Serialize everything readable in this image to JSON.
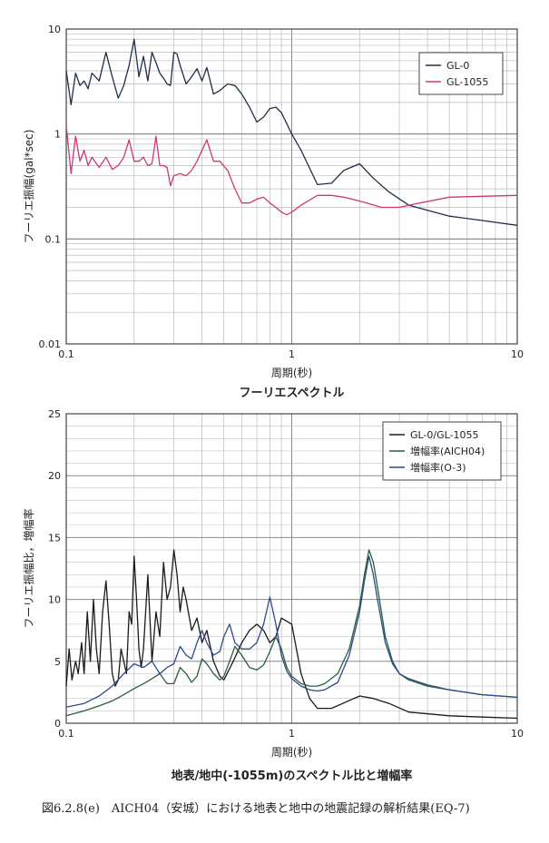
{
  "chart_data": [
    {
      "type": "line",
      "title": "フーリエスペクトル",
      "xlabel": "周期(秒)",
      "ylabel": "フーリエ振幅(gal*sec)",
      "x_scale": "log",
      "y_scale": "log",
      "xlim": [
        0.1,
        10
      ],
      "ylim": [
        0.01,
        10
      ],
      "x_ticks": [
        "0.1",
        "1",
        "10"
      ],
      "y_ticks": [
        "10",
        "1",
        "0.1",
        "0.01"
      ],
      "grid": true,
      "legend_position": "top-right",
      "series": [
        {
          "name": "GL-0",
          "color": "#1f2f4a",
          "x": [
            0.1,
            0.105,
            0.11,
            0.115,
            0.12,
            0.125,
            0.13,
            0.14,
            0.15,
            0.16,
            0.17,
            0.18,
            0.19,
            0.2,
            0.21,
            0.22,
            0.23,
            0.24,
            0.25,
            0.26,
            0.27,
            0.28,
            0.29,
            0.3,
            0.31,
            0.32,
            0.34,
            0.36,
            0.38,
            0.4,
            0.42,
            0.45,
            0.48,
            0.52,
            0.56,
            0.6,
            0.65,
            0.7,
            0.75,
            0.8,
            0.85,
            0.9,
            1.0,
            1.1,
            1.3,
            1.5,
            1.7,
            2.0,
            2.3,
            2.7,
            3.3,
            5.0,
            7.0,
            10.0
          ],
          "y": [
            4.0,
            1.9,
            3.8,
            2.9,
            3.2,
            2.7,
            3.8,
            3.2,
            6.0,
            3.5,
            2.2,
            2.9,
            4.5,
            8.0,
            3.5,
            5.5,
            3.2,
            6.0,
            4.8,
            3.8,
            3.4,
            3.0,
            2.9,
            6.0,
            5.8,
            4.5,
            3.0,
            3.5,
            4.2,
            3.2,
            4.3,
            2.4,
            2.6,
            3.0,
            2.9,
            2.4,
            1.8,
            1.3,
            1.45,
            1.75,
            1.8,
            1.6,
            1.0,
            0.7,
            0.33,
            0.34,
            0.45,
            0.52,
            0.38,
            0.28,
            0.21,
            0.165,
            0.15,
            0.135
          ]
        },
        {
          "name": "GL-1055",
          "color": "#d0357a",
          "x": [
            0.1,
            0.105,
            0.11,
            0.115,
            0.12,
            0.125,
            0.13,
            0.14,
            0.15,
            0.16,
            0.17,
            0.18,
            0.19,
            0.2,
            0.21,
            0.22,
            0.23,
            0.24,
            0.25,
            0.26,
            0.27,
            0.28,
            0.29,
            0.3,
            0.32,
            0.34,
            0.36,
            0.38,
            0.4,
            0.42,
            0.45,
            0.48,
            0.52,
            0.56,
            0.6,
            0.65,
            0.7,
            0.75,
            0.8,
            0.85,
            0.9,
            0.95,
            1.0,
            1.1,
            1.3,
            1.5,
            1.7,
            2.0,
            2.5,
            3.0,
            3.3,
            5.0,
            7.0,
            10.0
          ],
          "y": [
            1.2,
            0.42,
            0.95,
            0.55,
            0.7,
            0.5,
            0.6,
            0.48,
            0.6,
            0.46,
            0.5,
            0.6,
            0.88,
            0.55,
            0.55,
            0.6,
            0.5,
            0.52,
            0.95,
            0.5,
            0.5,
            0.48,
            0.32,
            0.4,
            0.42,
            0.4,
            0.45,
            0.55,
            0.7,
            0.88,
            0.55,
            0.55,
            0.45,
            0.3,
            0.22,
            0.22,
            0.24,
            0.25,
            0.22,
            0.2,
            0.18,
            0.17,
            0.18,
            0.21,
            0.26,
            0.26,
            0.25,
            0.23,
            0.2,
            0.2,
            0.21,
            0.25,
            0.255,
            0.26
          ]
        }
      ]
    },
    {
      "type": "line",
      "title": "地表/地中(-1055m)のスペクトル比と増幅率",
      "xlabel": "周期(秒)",
      "ylabel": "フーリエ振幅比，増幅率",
      "x_scale": "log",
      "y_scale": "linear",
      "xlim": [
        0.1,
        10
      ],
      "ylim": [
        0,
        25
      ],
      "x_ticks": [
        "0.1",
        "1",
        "10"
      ],
      "y_ticks": [
        "25",
        "20",
        "15",
        "10",
        "5",
        "0"
      ],
      "grid": true,
      "legend_position": "top-right",
      "series": [
        {
          "name": "GL-0/GL-1055",
          "color": "#1a1a1a",
          "x": [
            0.1,
            0.103,
            0.106,
            0.11,
            0.113,
            0.117,
            0.12,
            0.124,
            0.128,
            0.132,
            0.136,
            0.14,
            0.145,
            0.15,
            0.155,
            0.16,
            0.165,
            0.17,
            0.175,
            0.18,
            0.185,
            0.19,
            0.195,
            0.2,
            0.205,
            0.21,
            0.215,
            0.22,
            0.23,
            0.24,
            0.25,
            0.26,
            0.27,
            0.28,
            0.29,
            0.3,
            0.31,
            0.32,
            0.33,
            0.34,
            0.36,
            0.38,
            0.4,
            0.42,
            0.45,
            0.48,
            0.5,
            0.55,
            0.6,
            0.65,
            0.7,
            0.75,
            0.8,
            0.85,
            0.9,
            1.0,
            1.1,
            1.2,
            1.3,
            1.5,
            2.0,
            2.3,
            2.7,
            3.3,
            5.0,
            7.0,
            10.0
          ],
          "y": [
            3.0,
            6.0,
            3.5,
            5.0,
            4.0,
            6.5,
            4.0,
            9.0,
            5.0,
            10.0,
            6.0,
            4.0,
            9.0,
            11.5,
            8.0,
            4.0,
            3.0,
            3.5,
            6.0,
            5.0,
            4.0,
            9.0,
            8.0,
            13.5,
            10.0,
            6.0,
            4.5,
            6.0,
            12.0,
            5.0,
            9.0,
            7.0,
            13.0,
            10.0,
            11.0,
            14.0,
            12.0,
            9.0,
            11.0,
            10.0,
            7.5,
            8.5,
            6.5,
            7.5,
            5.0,
            3.8,
            3.5,
            5.0,
            6.5,
            7.5,
            8.0,
            7.5,
            6.5,
            7.0,
            8.5,
            8.0,
            4.0,
            2.0,
            1.2,
            1.2,
            2.2,
            2.0,
            1.6,
            0.9,
            0.6,
            0.5,
            0.4
          ]
        },
        {
          "name": "増幅率(AICH04)",
          "color": "#2a5f3c",
          "x": [
            0.1,
            0.12,
            0.14,
            0.16,
            0.18,
            0.2,
            0.22,
            0.24,
            0.26,
            0.28,
            0.3,
            0.32,
            0.34,
            0.36,
            0.38,
            0.4,
            0.42,
            0.45,
            0.48,
            0.5,
            0.53,
            0.56,
            0.6,
            0.65,
            0.7,
            0.75,
            0.8,
            0.85,
            0.9,
            0.95,
            1.0,
            1.1,
            1.2,
            1.3,
            1.4,
            1.6,
            1.8,
            2.0,
            2.1,
            2.2,
            2.3,
            2.4,
            2.6,
            2.8,
            3.0,
            3.3,
            4.0,
            5.0,
            7.0,
            10.0
          ],
          "y": [
            0.6,
            1.0,
            1.4,
            1.8,
            2.3,
            2.8,
            3.2,
            3.6,
            4.0,
            3.2,
            3.2,
            4.5,
            4.0,
            3.3,
            3.8,
            5.2,
            4.8,
            4.0,
            3.5,
            3.8,
            5.0,
            6.2,
            5.5,
            4.5,
            4.3,
            4.7,
            5.8,
            7.0,
            6.0,
            4.5,
            3.8,
            3.2,
            3.0,
            3.0,
            3.2,
            4.0,
            6.0,
            9.5,
            12.0,
            14.0,
            13.0,
            11.0,
            7.0,
            5.0,
            4.0,
            3.5,
            3.0,
            2.7,
            2.3,
            2.1
          ]
        },
        {
          "name": "増幅率(O-3)",
          "color": "#2c4a8c",
          "x": [
            0.1,
            0.12,
            0.14,
            0.16,
            0.18,
            0.2,
            0.22,
            0.24,
            0.26,
            0.28,
            0.3,
            0.32,
            0.34,
            0.36,
            0.38,
            0.4,
            0.42,
            0.45,
            0.48,
            0.5,
            0.53,
            0.56,
            0.6,
            0.65,
            0.7,
            0.75,
            0.8,
            0.85,
            0.9,
            0.95,
            1.0,
            1.1,
            1.2,
            1.3,
            1.4,
            1.6,
            1.8,
            2.0,
            2.1,
            2.2,
            2.3,
            2.4,
            2.6,
            2.8,
            3.0,
            3.3,
            4.0,
            5.0,
            7.0,
            10.0
          ],
          "y": [
            1.3,
            1.6,
            2.2,
            3.0,
            4.0,
            4.8,
            4.5,
            5.0,
            4.0,
            4.5,
            4.8,
            6.2,
            5.5,
            5.2,
            6.5,
            7.5,
            6.5,
            5.5,
            5.8,
            7.0,
            8.0,
            6.5,
            6.0,
            6.0,
            6.5,
            8.0,
            10.2,
            8.0,
            5.5,
            4.2,
            3.6,
            3.0,
            2.7,
            2.6,
            2.7,
            3.3,
            5.5,
            9.0,
            11.5,
            13.5,
            12.0,
            10.0,
            6.5,
            4.8,
            4.0,
            3.6,
            3.1,
            2.7,
            2.3,
            2.1
          ]
        }
      ]
    }
  ],
  "caption": "図6.2.8(e)　AICH04（安城）における地表と地中の地震記録の解析結果(EQ-7)"
}
